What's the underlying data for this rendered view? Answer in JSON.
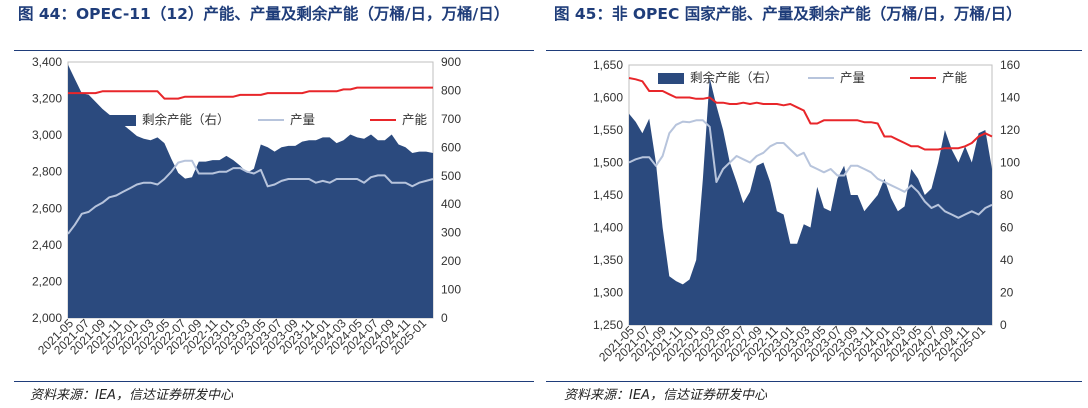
{
  "left": {
    "title": "图 44：OPEC-11（12）产能、产量及剩余产能（万桶/日，万桶/日）",
    "source": "资料来源：IEA，信达证券研发中心",
    "chart_data": {
      "type": "area+line",
      "x_labels": [
        "2021-05",
        "2021-07",
        "2021-09",
        "2021-11",
        "2022-01",
        "2022-03",
        "2022-05",
        "2022-07",
        "2022-09",
        "2022-11",
        "2023-01",
        "2023-03",
        "2023-05",
        "2023-07",
        "2023-09",
        "2023-11",
        "2024-01",
        "2024-03",
        "2024-05",
        "2024-07",
        "2024-09",
        "2024-11",
        "2025-01"
      ],
      "ylim_left": [
        2000,
        3400
      ],
      "yticks_left": [
        "2,000",
        "2,200",
        "2,400",
        "2,600",
        "2,800",
        "3,000",
        "3,200",
        "3,400"
      ],
      "ylim_right": [
        0,
        900
      ],
      "yticks_right": [
        "0",
        "100",
        "200",
        "300",
        "400",
        "500",
        "600",
        "700",
        "800",
        "900"
      ],
      "series": [
        {
          "name": "剩余产能（右）",
          "axis": "right",
          "kind": "area",
          "color": "#2b4a7e",
          "values": [
            890,
            840,
            790,
            785,
            760,
            735,
            715,
            700,
            680,
            660,
            640,
            630,
            625,
            635,
            615,
            560,
            510,
            490,
            495,
            550,
            550,
            555,
            555,
            570,
            555,
            535,
            510,
            525,
            610,
            600,
            585,
            600,
            605,
            605,
            620,
            625,
            625,
            635,
            635,
            615,
            625,
            645,
            635,
            630,
            645,
            625,
            625,
            645,
            610,
            600,
            580,
            585,
            585,
            580
          ]
        },
        {
          "name": "产量",
          "axis": "left",
          "kind": "line",
          "color": "#b7c4dc",
          "values": [
            2460,
            2510,
            2570,
            2580,
            2610,
            2630,
            2660,
            2670,
            2690,
            2710,
            2730,
            2740,
            2740,
            2730,
            2760,
            2800,
            2850,
            2860,
            2860,
            2790,
            2790,
            2790,
            2800,
            2800,
            2820,
            2820,
            2800,
            2790,
            2810,
            2720,
            2730,
            2750,
            2760,
            2760,
            2760,
            2760,
            2740,
            2750,
            2740,
            2760,
            2760,
            2760,
            2760,
            2740,
            2770,
            2780,
            2780,
            2740,
            2740,
            2740,
            2720,
            2740,
            2750,
            2760
          ]
        },
        {
          "name": "产能",
          "axis": "left",
          "kind": "line",
          "color": "#e8262a",
          "values": [
            3230,
            3230,
            3230,
            3230,
            3230,
            3240,
            3240,
            3240,
            3240,
            3240,
            3240,
            3240,
            3240,
            3240,
            3200,
            3200,
            3200,
            3210,
            3210,
            3210,
            3210,
            3210,
            3210,
            3210,
            3210,
            3220,
            3220,
            3220,
            3220,
            3230,
            3230,
            3230,
            3230,
            3230,
            3230,
            3240,
            3240,
            3240,
            3240,
            3240,
            3250,
            3250,
            3260,
            3260,
            3260,
            3260,
            3260,
            3260,
            3260,
            3260,
            3260,
            3260,
            3260,
            3260
          ]
        }
      ]
    }
  },
  "right": {
    "title": "图 45：非 OPEC 国家产能、产量及剩余产能（万桶/日，万桶/日）",
    "source": "资料来源：IEA，信达证券研发中心",
    "chart_data": {
      "type": "area+line",
      "x_labels": [
        "2021-05",
        "2021-07",
        "2021-09",
        "2021-11",
        "2022-01",
        "2022-03",
        "2022-05",
        "2022-07",
        "2022-09",
        "2022-11",
        "2023-01",
        "2023-03",
        "2023-05",
        "2023-07",
        "2023-09",
        "2023-11",
        "2024-01",
        "2024-03",
        "2024-05",
        "2024-07",
        "2024-09",
        "2024-11",
        "2025-01"
      ],
      "ylim_left": [
        1250,
        1650
      ],
      "yticks_left": [
        "1,250",
        "1,300",
        "1,350",
        "1,400",
        "1,450",
        "1,500",
        "1,550",
        "1,600",
        "1,650"
      ],
      "ylim_right": [
        0,
        160
      ],
      "yticks_right": [
        "0",
        "20",
        "40",
        "60",
        "80",
        "100",
        "120",
        "140",
        "160"
      ],
      "series": [
        {
          "name": "剩余产能（右）",
          "axis": "right",
          "kind": "area",
          "color": "#2b4a7e",
          "values": [
            130,
            125,
            118,
            127,
            100,
            60,
            30,
            27,
            25,
            28,
            40,
            90,
            152,
            135,
            120,
            100,
            88,
            75,
            82,
            98,
            100,
            88,
            70,
            68,
            50,
            50,
            62,
            60,
            85,
            72,
            70,
            90,
            98,
            80,
            80,
            70,
            75,
            80,
            90,
            78,
            70,
            73,
            96,
            90,
            80,
            84,
            100,
            120,
            108,
            100,
            110,
            100,
            118,
            120,
            96
          ]
        },
        {
          "name": "产量",
          "axis": "left",
          "kind": "line",
          "color": "#b7c4dc",
          "values": [
            1500,
            1505,
            1508,
            1508,
            1495,
            1510,
            1545,
            1558,
            1563,
            1562,
            1565,
            1565,
            1555,
            1470,
            1490,
            1500,
            1510,
            1505,
            1500,
            1510,
            1515,
            1525,
            1530,
            1530,
            1520,
            1510,
            1515,
            1495,
            1490,
            1485,
            1490,
            1480,
            1480,
            1495,
            1495,
            1490,
            1485,
            1475,
            1470,
            1465,
            1460,
            1455,
            1465,
            1455,
            1440,
            1430,
            1435,
            1425,
            1420,
            1415,
            1420,
            1425,
            1420,
            1430,
            1435
          ]
        },
        {
          "name": "产能",
          "axis": "left",
          "kind": "line",
          "color": "#e8262a",
          "values": [
            1630,
            1628,
            1625,
            1610,
            1610,
            1610,
            1605,
            1600,
            1600,
            1600,
            1598,
            1598,
            1600,
            1592,
            1592,
            1590,
            1590,
            1592,
            1590,
            1592,
            1590,
            1590,
            1590,
            1588,
            1590,
            1585,
            1580,
            1560,
            1560,
            1565,
            1565,
            1565,
            1565,
            1565,
            1565,
            1562,
            1562,
            1560,
            1540,
            1540,
            1535,
            1530,
            1525,
            1525,
            1520,
            1520,
            1520,
            1522,
            1522,
            1522,
            1525,
            1530,
            1540,
            1545,
            1540
          ]
        }
      ]
    }
  }
}
